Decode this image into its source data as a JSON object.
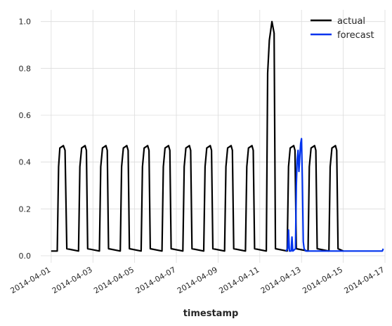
{
  "chart_data": {
    "type": "line",
    "title": "",
    "xlabel": "timestamp",
    "ylabel": "",
    "x_type": "date",
    "xlim": [
      "2014-03-31T12:00",
      "2014-04-17T00:00"
    ],
    "ylim": [
      -0.03,
      1.05
    ],
    "grid": true,
    "legend_position": "top-right",
    "x_ticks": [
      "2014-04-01",
      "2014-04-03",
      "2014-04-05",
      "2014-04-07",
      "2014-04-09",
      "2014-04-11",
      "2014-04-13",
      "2014-04-15",
      "2014-04-17"
    ],
    "y_ticks": [
      "0.0",
      "0.2",
      "0.4",
      "0.6",
      "0.8",
      "1.0"
    ],
    "series": [
      {
        "name": "actual",
        "color": "#000000",
        "points": [
          [
            "2014-04-01T00:00",
            0.02
          ],
          [
            "2014-04-01T07:00",
            0.02
          ],
          [
            "2014-04-01T08:30",
            0.38
          ],
          [
            "2014-04-01T10:00",
            0.46
          ],
          [
            "2014-04-01T14:00",
            0.47
          ],
          [
            "2014-04-01T16:00",
            0.45
          ],
          [
            "2014-04-01T18:00",
            0.03
          ],
          [
            "2014-04-02T07:30",
            0.02
          ],
          [
            "2014-04-02T09:00",
            0.38
          ],
          [
            "2014-04-02T11:00",
            0.46
          ],
          [
            "2014-04-02T15:00",
            0.47
          ],
          [
            "2014-04-02T16:30",
            0.45
          ],
          [
            "2014-04-02T18:00",
            0.03
          ],
          [
            "2014-04-03T07:30",
            0.02
          ],
          [
            "2014-04-03T09:00",
            0.38
          ],
          [
            "2014-04-03T11:00",
            0.46
          ],
          [
            "2014-04-03T15:00",
            0.47
          ],
          [
            "2014-04-03T16:30",
            0.45
          ],
          [
            "2014-04-03T18:00",
            0.03
          ],
          [
            "2014-04-04T07:30",
            0.02
          ],
          [
            "2014-04-04T09:00",
            0.38
          ],
          [
            "2014-04-04T11:00",
            0.46
          ],
          [
            "2014-04-04T15:00",
            0.47
          ],
          [
            "2014-04-04T16:30",
            0.45
          ],
          [
            "2014-04-04T18:00",
            0.03
          ],
          [
            "2014-04-05T07:30",
            0.02
          ],
          [
            "2014-04-05T09:00",
            0.38
          ],
          [
            "2014-04-05T11:00",
            0.46
          ],
          [
            "2014-04-05T15:00",
            0.47
          ],
          [
            "2014-04-05T16:30",
            0.45
          ],
          [
            "2014-04-05T18:00",
            0.03
          ],
          [
            "2014-04-06T07:30",
            0.02
          ],
          [
            "2014-04-06T09:00",
            0.38
          ],
          [
            "2014-04-06T11:00",
            0.46
          ],
          [
            "2014-04-06T15:00",
            0.47
          ],
          [
            "2014-04-06T16:30",
            0.45
          ],
          [
            "2014-04-06T18:00",
            0.03
          ],
          [
            "2014-04-07T07:30",
            0.02
          ],
          [
            "2014-04-07T09:00",
            0.38
          ],
          [
            "2014-04-07T11:00",
            0.46
          ],
          [
            "2014-04-07T15:00",
            0.47
          ],
          [
            "2014-04-07T16:30",
            0.45
          ],
          [
            "2014-04-07T18:00",
            0.03
          ],
          [
            "2014-04-08T07:30",
            0.02
          ],
          [
            "2014-04-08T09:00",
            0.38
          ],
          [
            "2014-04-08T11:00",
            0.46
          ],
          [
            "2014-04-08T15:00",
            0.47
          ],
          [
            "2014-04-08T16:30",
            0.45
          ],
          [
            "2014-04-08T18:00",
            0.03
          ],
          [
            "2014-04-09T07:30",
            0.02
          ],
          [
            "2014-04-09T09:00",
            0.38
          ],
          [
            "2014-04-09T11:00",
            0.46
          ],
          [
            "2014-04-09T15:00",
            0.47
          ],
          [
            "2014-04-09T16:30",
            0.45
          ],
          [
            "2014-04-09T18:00",
            0.03
          ],
          [
            "2014-04-10T07:30",
            0.02
          ],
          [
            "2014-04-10T09:00",
            0.38
          ],
          [
            "2014-04-10T11:00",
            0.46
          ],
          [
            "2014-04-10T15:00",
            0.47
          ],
          [
            "2014-04-10T16:30",
            0.45
          ],
          [
            "2014-04-10T18:00",
            0.03
          ],
          [
            "2014-04-11T07:30",
            0.02
          ],
          [
            "2014-04-11T09:00",
            0.78
          ],
          [
            "2014-04-11T11:00",
            0.92
          ],
          [
            "2014-04-11T14:00",
            1.0
          ],
          [
            "2014-04-11T16:30",
            0.95
          ],
          [
            "2014-04-11T18:00",
            0.03
          ],
          [
            "2014-04-12T07:30",
            0.02
          ],
          [
            "2014-04-12T09:00",
            0.38
          ],
          [
            "2014-04-12T11:00",
            0.46
          ],
          [
            "2014-04-12T15:00",
            0.47
          ],
          [
            "2014-04-12T16:30",
            0.45
          ],
          [
            "2014-04-12T18:00",
            0.03
          ],
          [
            "2014-04-13T07:30",
            0.02
          ],
          [
            "2014-04-13T09:00",
            0.38
          ],
          [
            "2014-04-13T11:00",
            0.46
          ],
          [
            "2014-04-13T15:00",
            0.47
          ],
          [
            "2014-04-13T16:30",
            0.45
          ],
          [
            "2014-04-13T18:00",
            0.03
          ],
          [
            "2014-04-14T07:30",
            0.02
          ],
          [
            "2014-04-14T09:00",
            0.38
          ],
          [
            "2014-04-14T11:00",
            0.46
          ],
          [
            "2014-04-14T15:00",
            0.47
          ],
          [
            "2014-04-14T16:30",
            0.45
          ],
          [
            "2014-04-14T18:00",
            0.03
          ],
          [
            "2014-04-15T00:00",
            0.02
          ]
        ]
      },
      {
        "name": "forecast",
        "color": "#0033ee",
        "points": [
          [
            "2014-04-12T06:00",
            0.02
          ],
          [
            "2014-04-12T08:00",
            0.03
          ],
          [
            "2014-04-12T09:00",
            0.11
          ],
          [
            "2014-04-12T10:00",
            0.02
          ],
          [
            "2014-04-12T12:00",
            0.02
          ],
          [
            "2014-04-12T13:00",
            0.08
          ],
          [
            "2014-04-12T14:00",
            0.02
          ],
          [
            "2014-04-12T17:00",
            0.03
          ],
          [
            "2014-04-12T18:00",
            0.3
          ],
          [
            "2014-04-12T19:00",
            0.41
          ],
          [
            "2014-04-12T20:00",
            0.45
          ],
          [
            "2014-04-12T21:00",
            0.36
          ],
          [
            "2014-04-12T22:00",
            0.42
          ],
          [
            "2014-04-12T23:00",
            0.48
          ],
          [
            "2014-04-13T00:00",
            0.5
          ],
          [
            "2014-04-13T01:00",
            0.32
          ],
          [
            "2014-04-13T02:00",
            0.06
          ],
          [
            "2014-04-13T03:00",
            0.03
          ],
          [
            "2014-04-13T05:00",
            0.02
          ],
          [
            "2014-04-14T00:00",
            0.02
          ],
          [
            "2014-04-15T00:00",
            0.02
          ],
          [
            "2014-04-16T00:00",
            0.02
          ],
          [
            "2014-04-16T21:00",
            0.02
          ],
          [
            "2014-04-16T22:00",
            0.03
          ]
        ]
      }
    ]
  }
}
